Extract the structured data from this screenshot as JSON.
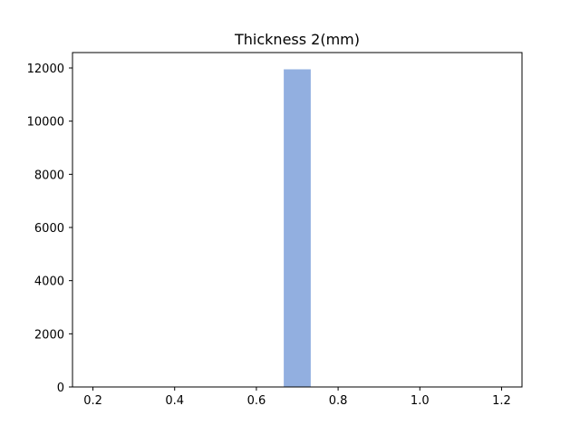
{
  "chart_data": {
    "type": "bar",
    "title": "Thickness 2(mm)",
    "xlabel": "",
    "ylabel": "",
    "x_ticks": [
      "0.2",
      "0.4",
      "0.6",
      "0.8",
      "1.0",
      "1.2"
    ],
    "x_tick_values": [
      0.2,
      0.4,
      0.6,
      0.8,
      1.0,
      1.2
    ],
    "y_ticks": [
      "0",
      "2000",
      "4000",
      "6000",
      "8000",
      "10000",
      "12000"
    ],
    "y_tick_values": [
      0,
      2000,
      4000,
      6000,
      8000,
      10000,
      12000
    ],
    "xlim": [
      0.15,
      1.25
    ],
    "ylim": [
      0,
      12580
    ],
    "bars": [
      {
        "x0": 0.667,
        "x1": 0.733,
        "value": 11950
      }
    ],
    "bar_color": "#92afe0",
    "grid": false,
    "legend": "none"
  }
}
